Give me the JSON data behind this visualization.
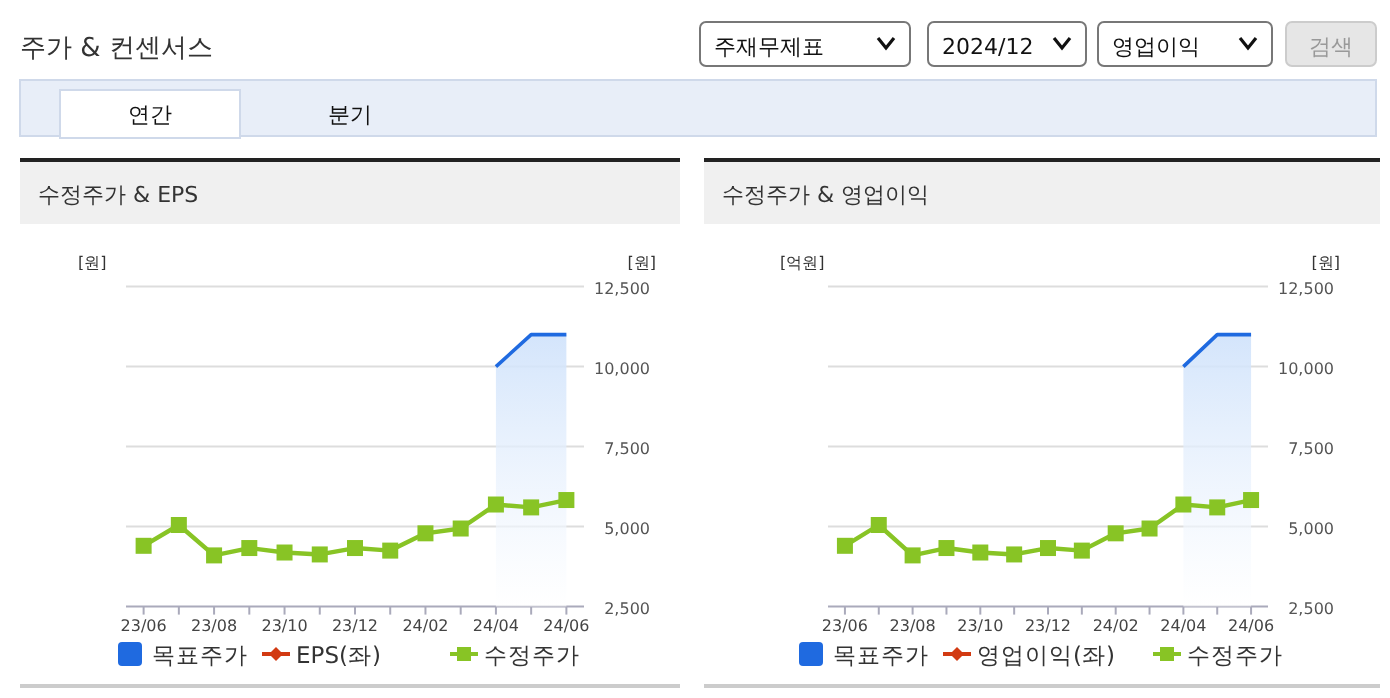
{
  "chart_data": [
    {
      "type": "line",
      "title": "수정주가 & EPS",
      "ylabel": "[원]",
      "y2label": "[원]",
      "annotations": [
        "주가 & 컨센서스",
        "주재무제표",
        "2024/12",
        "영업이익",
        "검색",
        "연간",
        "분기"
      ],
      "categories": [
        "23/06",
        null,
        "23/08",
        null,
        "23/10",
        null,
        "23/12",
        null,
        "24/02",
        null,
        "24/04",
        null,
        "24/06"
      ],
      "series": [
        {
          "name": "목표주가",
          "type": "area",
          "axis": "y2",
          "color": "#1f6ae0",
          "values": [
            null,
            null,
            null,
            null,
            null,
            null,
            null,
            null,
            null,
            null,
            10000,
            11000,
            11000
          ]
        },
        {
          "name": "EPS(좌)",
          "type": "line",
          "axis": "y",
          "marker": "diamond",
          "color": "#d23a12",
          "values": [
            null,
            null,
            null,
            null,
            null,
            null,
            null,
            null,
            null,
            null,
            null,
            null,
            null
          ]
        },
        {
          "name": "수정주가",
          "axis": "y2",
          "marker": "square",
          "color": "#88c425",
          "values": [
            4400,
            5050,
            4100,
            4330,
            4190,
            4130,
            4330,
            4250,
            4790,
            4940,
            5690,
            5600,
            5830
          ]
        }
      ],
      "y2lim": [
        2500,
        12500
      ],
      "y2ticks": [
        {
          "value": 2500,
          "label": "2,500"
        },
        {
          "value": 5000,
          "label": "5,000"
        },
        {
          "value": 7500,
          "label": "7,500"
        },
        {
          "value": 10000,
          "label": "10,000"
        },
        {
          "value": 12500,
          "label": "12,500"
        }
      ],
      "grid": "y",
      "legend": "bottom"
    },
    {
      "type": "line",
      "title": "수정주가 & 영업이익",
      "ylabel": "[억원]",
      "y2label": "[원]",
      "categories": [
        "23/06",
        null,
        "23/08",
        null,
        "23/10",
        null,
        "23/12",
        null,
        "24/02",
        null,
        "24/04",
        null,
        "24/06"
      ],
      "series": [
        {
          "name": "목표주가",
          "type": "area",
          "axis": "y2",
          "color": "#1f6ae0",
          "values": [
            null,
            null,
            null,
            null,
            null,
            null,
            null,
            null,
            null,
            null,
            10000,
            11000,
            11000
          ]
        },
        {
          "name": "영업이익(좌)",
          "type": "line",
          "axis": "y",
          "marker": "diamond",
          "color": "#d23a12",
          "values": [
            null,
            null,
            null,
            null,
            null,
            null,
            null,
            null,
            null,
            null,
            null,
            null,
            null
          ]
        },
        {
          "name": "수정주가",
          "axis": "y2",
          "marker": "square",
          "color": "#88c425",
          "values": [
            4400,
            5050,
            4100,
            4330,
            4190,
            4130,
            4330,
            4250,
            4790,
            4940,
            5690,
            5600,
            5830
          ]
        }
      ],
      "y2lim": [
        2500,
        12500
      ],
      "y2ticks": [
        {
          "value": 2500,
          "label": "2,500"
        },
        {
          "value": 5000,
          "label": "5,000"
        },
        {
          "value": 7500,
          "label": "7,500"
        },
        {
          "value": 10000,
          "label": "10,000"
        },
        {
          "value": 12500,
          "label": "12,500"
        }
      ],
      "grid": "y",
      "legend": "bottom"
    }
  ]
}
